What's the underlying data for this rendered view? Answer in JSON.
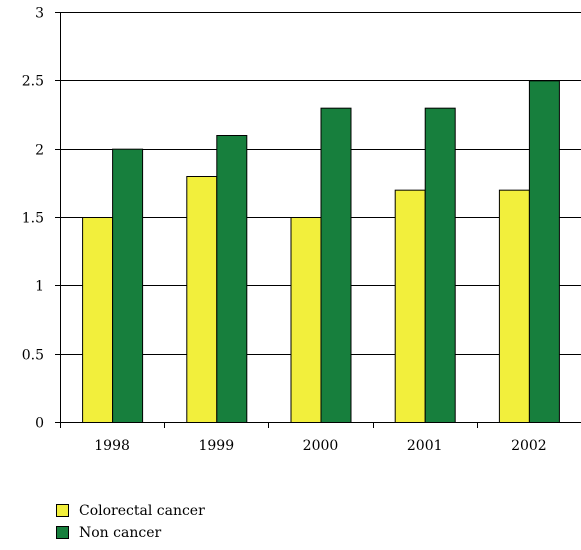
{
  "chart_data": {
    "type": "bar",
    "title": "",
    "xlabel": "",
    "ylabel": "",
    "categories": [
      "1998",
      "1999",
      "2000",
      "2001",
      "2002"
    ],
    "series": [
      {
        "name": "Colorectal cancer",
        "values": [
          1.5,
          1.8,
          1.5,
          1.7,
          1.7
        ],
        "color": "#f2ef3c"
      },
      {
        "name": "Non cancer",
        "values": [
          2.0,
          2.1,
          2.3,
          2.3,
          2.5
        ],
        "color": "#177f3d"
      }
    ],
    "ylim": [
      0,
      3
    ],
    "yticks": [
      "0",
      "0.5",
      "1",
      "1.5",
      "2",
      "2.5",
      "3"
    ],
    "grid": true,
    "legend_position": "bottom-left"
  }
}
